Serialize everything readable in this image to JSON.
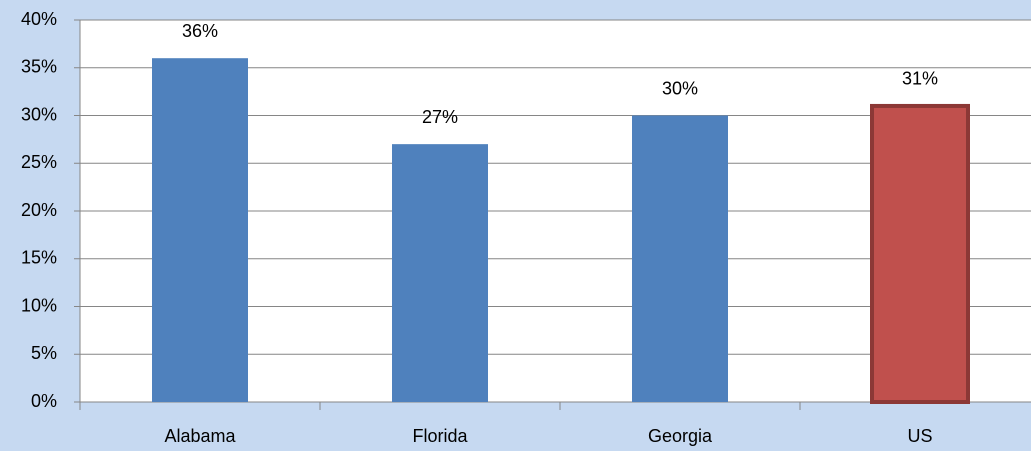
{
  "chart_data": {
    "type": "bar",
    "categories": [
      "Alabama",
      "Florida",
      "Georgia",
      "US"
    ],
    "values": [
      36,
      27,
      30,
      31
    ],
    "value_labels": [
      "36%",
      "27%",
      "30%",
      "31%"
    ],
    "colors": [
      "#4f81bd",
      "#4f81bd",
      "#4f81bd",
      "#c0504d"
    ],
    "ylim": [
      0,
      40
    ],
    "yticks": [
      {
        "value": 0,
        "label": "0%"
      },
      {
        "value": 5,
        "label": "5%"
      },
      {
        "value": 10,
        "label": "10%"
      },
      {
        "value": 15,
        "label": "15%"
      },
      {
        "value": 20,
        "label": "20%"
      },
      {
        "value": 25,
        "label": "25%"
      },
      {
        "value": 30,
        "label": "30%"
      },
      {
        "value": 35,
        "label": "35%"
      },
      {
        "value": 40,
        "label": "40%"
      }
    ],
    "grid": true
  }
}
